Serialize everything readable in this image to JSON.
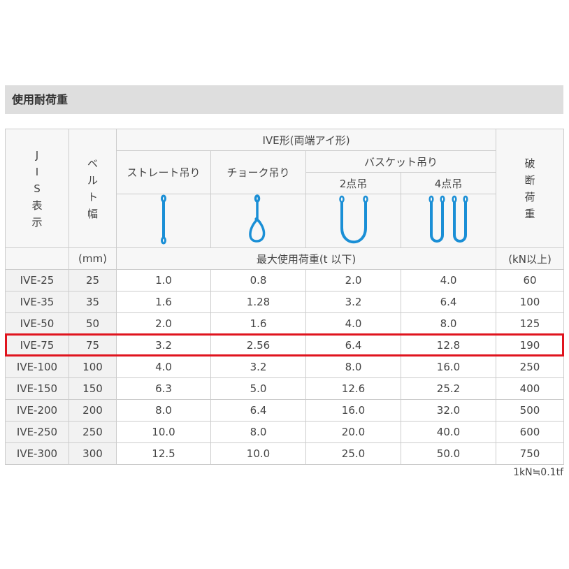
{
  "title": "使用耐荷重",
  "header": {
    "jis": [
      "J",
      "I",
      "S",
      "表",
      "示"
    ],
    "width": [
      "ベ",
      "ル",
      "ト",
      "幅"
    ],
    "width_unit": "(mm)",
    "group": "IVE形(両端アイ形)",
    "straight": "ストレート吊り",
    "choke": "チョーク吊り",
    "basket": "バスケット吊り",
    "basket2": "2点吊",
    "basket4": "4点吊",
    "break": [
      "破",
      "断",
      "荷",
      "重"
    ],
    "break_unit": "(kN以上)",
    "wll": "最大使用荷重(t 以下)"
  },
  "icons": [
    "straight-sling-icon",
    "choke-sling-icon",
    "basket-2-point-icon",
    "basket-4-point-icon"
  ],
  "icon_color": "#1a8fd6",
  "highlight_color": "#e0141e",
  "rows": [
    [
      "IVE-25",
      "25",
      "1.0",
      "0.8",
      "2.0",
      "4.0",
      "60"
    ],
    [
      "IVE-35",
      "35",
      "1.6",
      "1.28",
      "3.2",
      "6.4",
      "100"
    ],
    [
      "IVE-50",
      "50",
      "2.0",
      "1.6",
      "4.0",
      "8.0",
      "125"
    ],
    [
      "IVE-75",
      "75",
      "3.2",
      "2.56",
      "6.4",
      "12.8",
      "190"
    ],
    [
      "IVE-100",
      "100",
      "4.0",
      "3.2",
      "8.0",
      "16.0",
      "250"
    ],
    [
      "IVE-150",
      "150",
      "6.3",
      "5.0",
      "12.6",
      "25.2",
      "400"
    ],
    [
      "IVE-200",
      "200",
      "8.0",
      "6.4",
      "16.0",
      "32.0",
      "500"
    ],
    [
      "IVE-250",
      "250",
      "10.0",
      "8.0",
      "20.0",
      "40.0",
      "600"
    ],
    [
      "IVE-300",
      "300",
      "12.5",
      "10.0",
      "25.0",
      "50.0",
      "750"
    ]
  ],
  "highlighted_row": "IVE-75",
  "note": "1kN≒0.1tf"
}
